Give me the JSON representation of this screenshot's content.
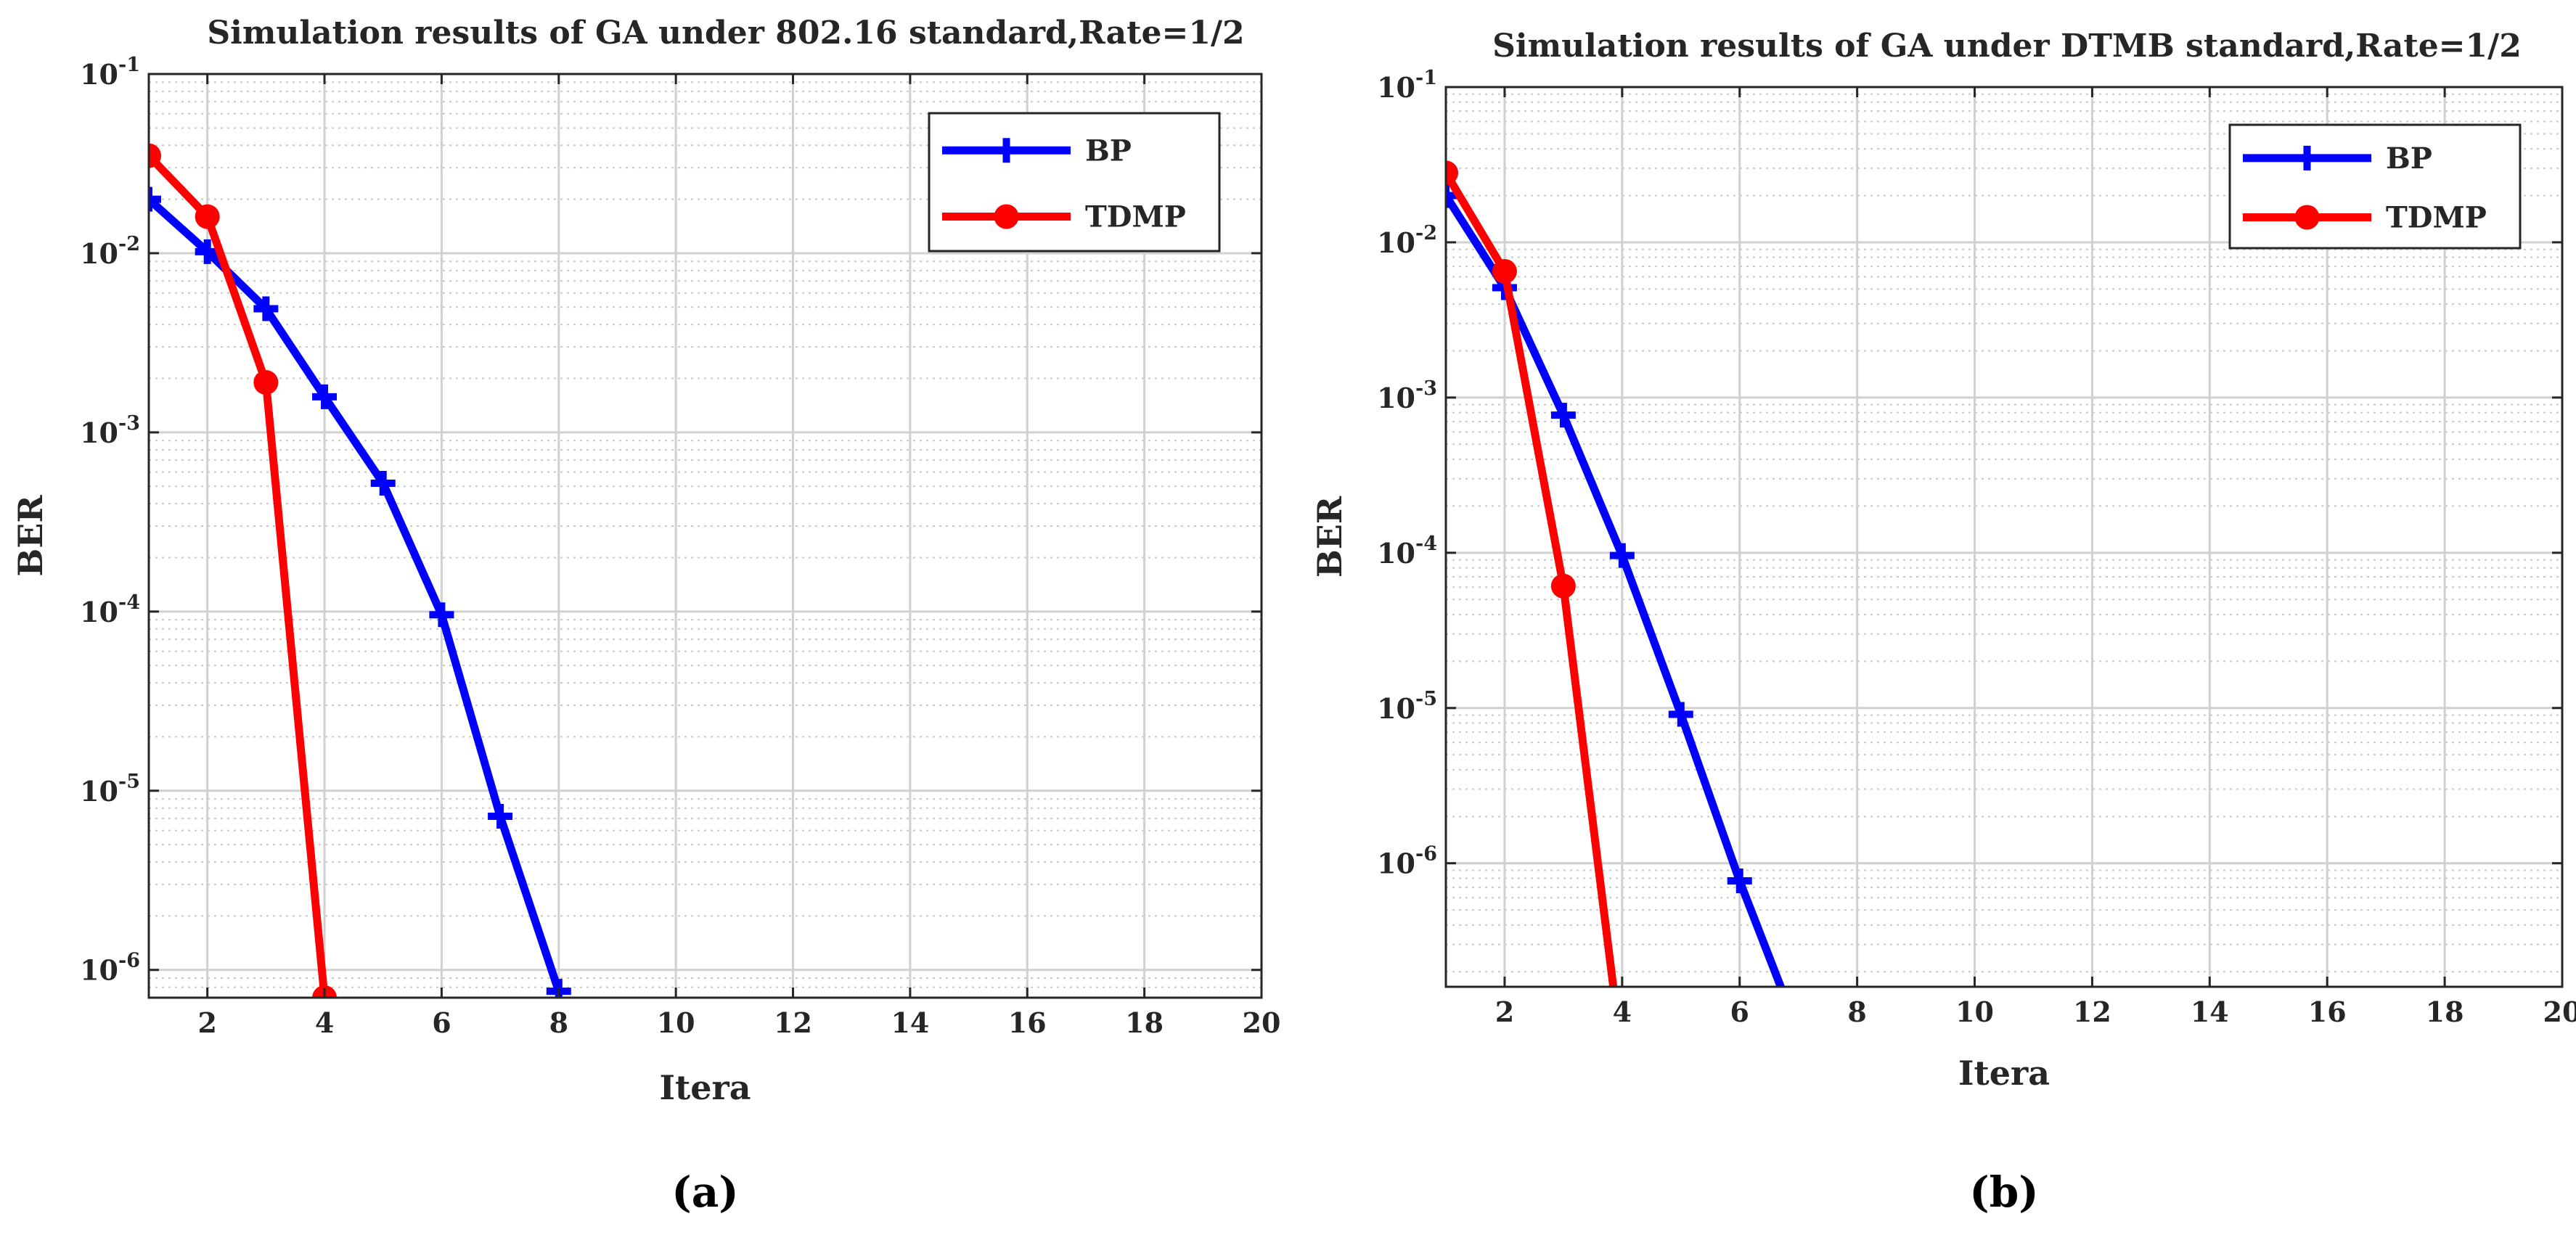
{
  "chart_data": [
    {
      "type": "line",
      "panel_label": "(a)",
      "title": "Simulation results of GA under 802.16 standard,Rate=1/2",
      "xlabel": "Itera",
      "ylabel": "BER",
      "xscale": "linear",
      "yscale": "log",
      "xlim": [
        1,
        20
      ],
      "ylim": [
        7e-07,
        0.1
      ],
      "grid": true,
      "legend_location": "top-right",
      "x_ticks": [
        2,
        4,
        6,
        8,
        10,
        12,
        14,
        16,
        18,
        20
      ],
      "y_ticks": [
        {
          "value": 1e-06,
          "base": "10",
          "exp": "-6"
        },
        {
          "value": 1e-05,
          "base": "10",
          "exp": "-5"
        },
        {
          "value": 0.0001,
          "base": "10",
          "exp": "-4"
        },
        {
          "value": 0.001,
          "base": "10",
          "exp": "-3"
        },
        {
          "value": 0.01,
          "base": "10",
          "exp": "-2"
        },
        {
          "value": 0.1,
          "base": "10",
          "exp": "-1"
        }
      ],
      "series": [
        {
          "name": "BP",
          "color": "#0000ff",
          "marker": "plus",
          "x": [
            1,
            2,
            3,
            4,
            5,
            6,
            7,
            8
          ],
          "y": [
            0.02,
            0.0102,
            0.0049,
            0.00158,
            0.00052,
            9.6e-05,
            7.2e-06,
            7.6e-07
          ]
        },
        {
          "name": "TDMP",
          "color": "#ff0000",
          "marker": "circle",
          "x": [
            1,
            2,
            3,
            4
          ],
          "y": [
            0.035,
            0.016,
            0.0019,
            7e-07
          ]
        }
      ]
    },
    {
      "type": "line",
      "panel_label": "(b)",
      "title": "Simulation results of GA under DTMB standard,Rate=1/2",
      "xlabel": "Itera",
      "ylabel": "BER",
      "xscale": "linear",
      "yscale": "log",
      "xlim": [
        1,
        20
      ],
      "ylim": [
        1.6e-07,
        0.1
      ],
      "grid": true,
      "legend_location": "top-right",
      "x_ticks": [
        2,
        4,
        6,
        8,
        10,
        12,
        14,
        16,
        18,
        20
      ],
      "y_ticks": [
        {
          "value": 1e-06,
          "base": "10",
          "exp": "-6"
        },
        {
          "value": 1e-05,
          "base": "10",
          "exp": "-5"
        },
        {
          "value": 0.0001,
          "base": "10",
          "exp": "-4"
        },
        {
          "value": 0.001,
          "base": "10",
          "exp": "-3"
        },
        {
          "value": 0.01,
          "base": "10",
          "exp": "-2"
        },
        {
          "value": 0.1,
          "base": "10",
          "exp": "-1"
        }
      ],
      "series": [
        {
          "name": "BP",
          "color": "#0000ff",
          "marker": "plus",
          "x": [
            1,
            2,
            3,
            4,
            5,
            6,
            6.7
          ],
          "y": [
            0.02,
            0.0051,
            0.00077,
            9.6e-05,
            9.1e-06,
            7.7e-07,
            1.6e-07
          ],
          "marker_x": [
            1,
            2,
            3,
            4,
            5,
            6
          ]
        },
        {
          "name": "TDMP",
          "color": "#ff0000",
          "marker": "circle",
          "x": [
            1,
            2,
            3,
            3.85
          ],
          "y": [
            0.028,
            0.0065,
            6.1e-05,
            1.6e-07
          ],
          "marker_x": [
            1,
            2,
            3
          ]
        }
      ]
    }
  ]
}
